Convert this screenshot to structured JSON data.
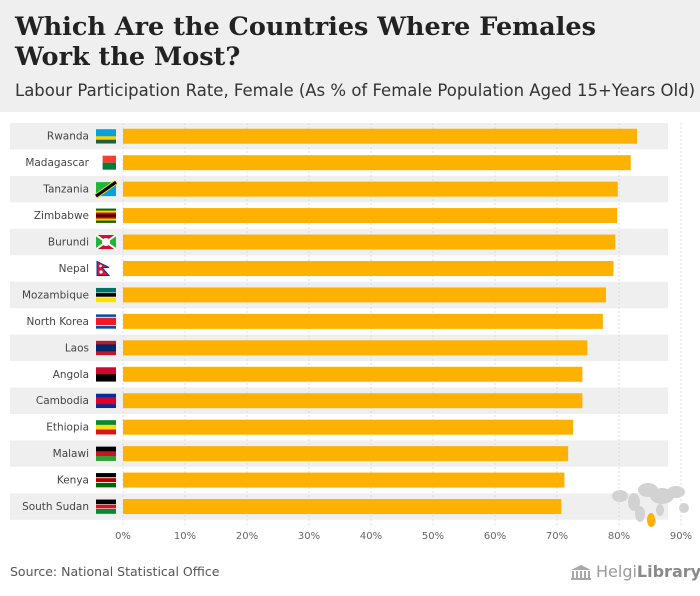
{
  "header": {
    "title": "Which Are the Countries Where Females Work the Most?",
    "subtitle": "Labour Participation Rate, Female (As % of Female Population Aged 15+Years Old)"
  },
  "chart_data": {
    "type": "bar",
    "orientation": "horizontal",
    "title": "Which Are the Countries Where Females Work the Most?",
    "subtitle": "Labour Participation Rate, Female (As % of Female Population Aged 15+Years Old)",
    "categories": [
      "Rwanda",
      "Madagascar",
      "Tanzania",
      "Zimbabwe",
      "Burundi",
      "Nepal",
      "Mozambique",
      "North Korea",
      "Laos",
      "Angola",
      "Cambodia",
      "Ethiopia",
      "Malawi",
      "Kenya",
      "South Sudan"
    ],
    "values": [
      82.9,
      81.9,
      79.8,
      79.7,
      79.4,
      79.1,
      77.9,
      77.4,
      74.9,
      74.1,
      74.1,
      72.6,
      71.8,
      71.2,
      70.7
    ],
    "xlim": [
      0,
      90
    ],
    "xticks": [
      "0%",
      "10%",
      "20%",
      "30%",
      "40%",
      "50%",
      "60%",
      "70%",
      "80%",
      "90%"
    ],
    "bar_color": "#ffb100",
    "grid": true,
    "xlabel": "",
    "ylabel": ""
  },
  "flags": {
    "Rwanda": [
      [
        "#00a1de",
        0.5
      ],
      [
        "#fad201",
        0.25
      ],
      [
        "#20603d",
        0.25
      ]
    ],
    "Madagascar": "madagascar",
    "Tanzania": "diag",
    "Zimbabwe": [
      [
        "#006400",
        0.143
      ],
      [
        "#ffd200",
        0.143
      ],
      [
        "#d40000",
        0.143
      ],
      [
        "#000000",
        0.143
      ],
      [
        "#d40000",
        0.143
      ],
      [
        "#ffd200",
        0.143
      ],
      [
        "#006400",
        0.142
      ]
    ],
    "Burundi": "burundi",
    "Nepal": "nepal",
    "Mozambique": [
      [
        "#007168",
        0.33
      ],
      [
        "#ffffff",
        0.04
      ],
      [
        "#000000",
        0.26
      ],
      [
        "#ffffff",
        0.04
      ],
      [
        "#fce100",
        0.33
      ]
    ],
    "North Korea": [
      [
        "#024fa2",
        0.18
      ],
      [
        "#ffffff",
        0.06
      ],
      [
        "#ed1c27",
        0.52
      ],
      [
        "#ffffff",
        0.06
      ],
      [
        "#024fa2",
        0.18
      ]
    ],
    "Laos": [
      [
        "#ce1126",
        0.25
      ],
      [
        "#002868",
        0.5
      ],
      [
        "#ce1126",
        0.25
      ]
    ],
    "Angola": [
      [
        "#cc092f",
        0.5
      ],
      [
        "#000000",
        0.5
      ]
    ],
    "Cambodia": [
      [
        "#032ea1",
        0.25
      ],
      [
        "#e00025",
        0.5
      ],
      [
        "#032ea1",
        0.25
      ]
    ],
    "Ethiopia": [
      [
        "#078930",
        0.333
      ],
      [
        "#fcdd09",
        0.334
      ],
      [
        "#da121a",
        0.333
      ]
    ],
    "Malawi": [
      [
        "#000000",
        0.333
      ],
      [
        "#ce1126",
        0.334
      ],
      [
        "#339e35",
        0.333
      ]
    ],
    "Kenya": [
      [
        "#000000",
        0.3
      ],
      [
        "#ffffff",
        0.06
      ],
      [
        "#bb0000",
        0.28
      ],
      [
        "#ffffff",
        0.06
      ],
      [
        "#006600",
        0.3
      ]
    ],
    "South Sudan": [
      [
        "#000000",
        0.33
      ],
      [
        "#ffffff",
        0.04
      ],
      [
        "#da121a",
        0.26
      ],
      [
        "#ffffff",
        0.04
      ],
      [
        "#078930",
        0.33
      ]
    ]
  },
  "footer": {
    "source": "Source: National Statistical Office",
    "brand_prefix": "Helgi",
    "brand_suffix": "Library."
  }
}
